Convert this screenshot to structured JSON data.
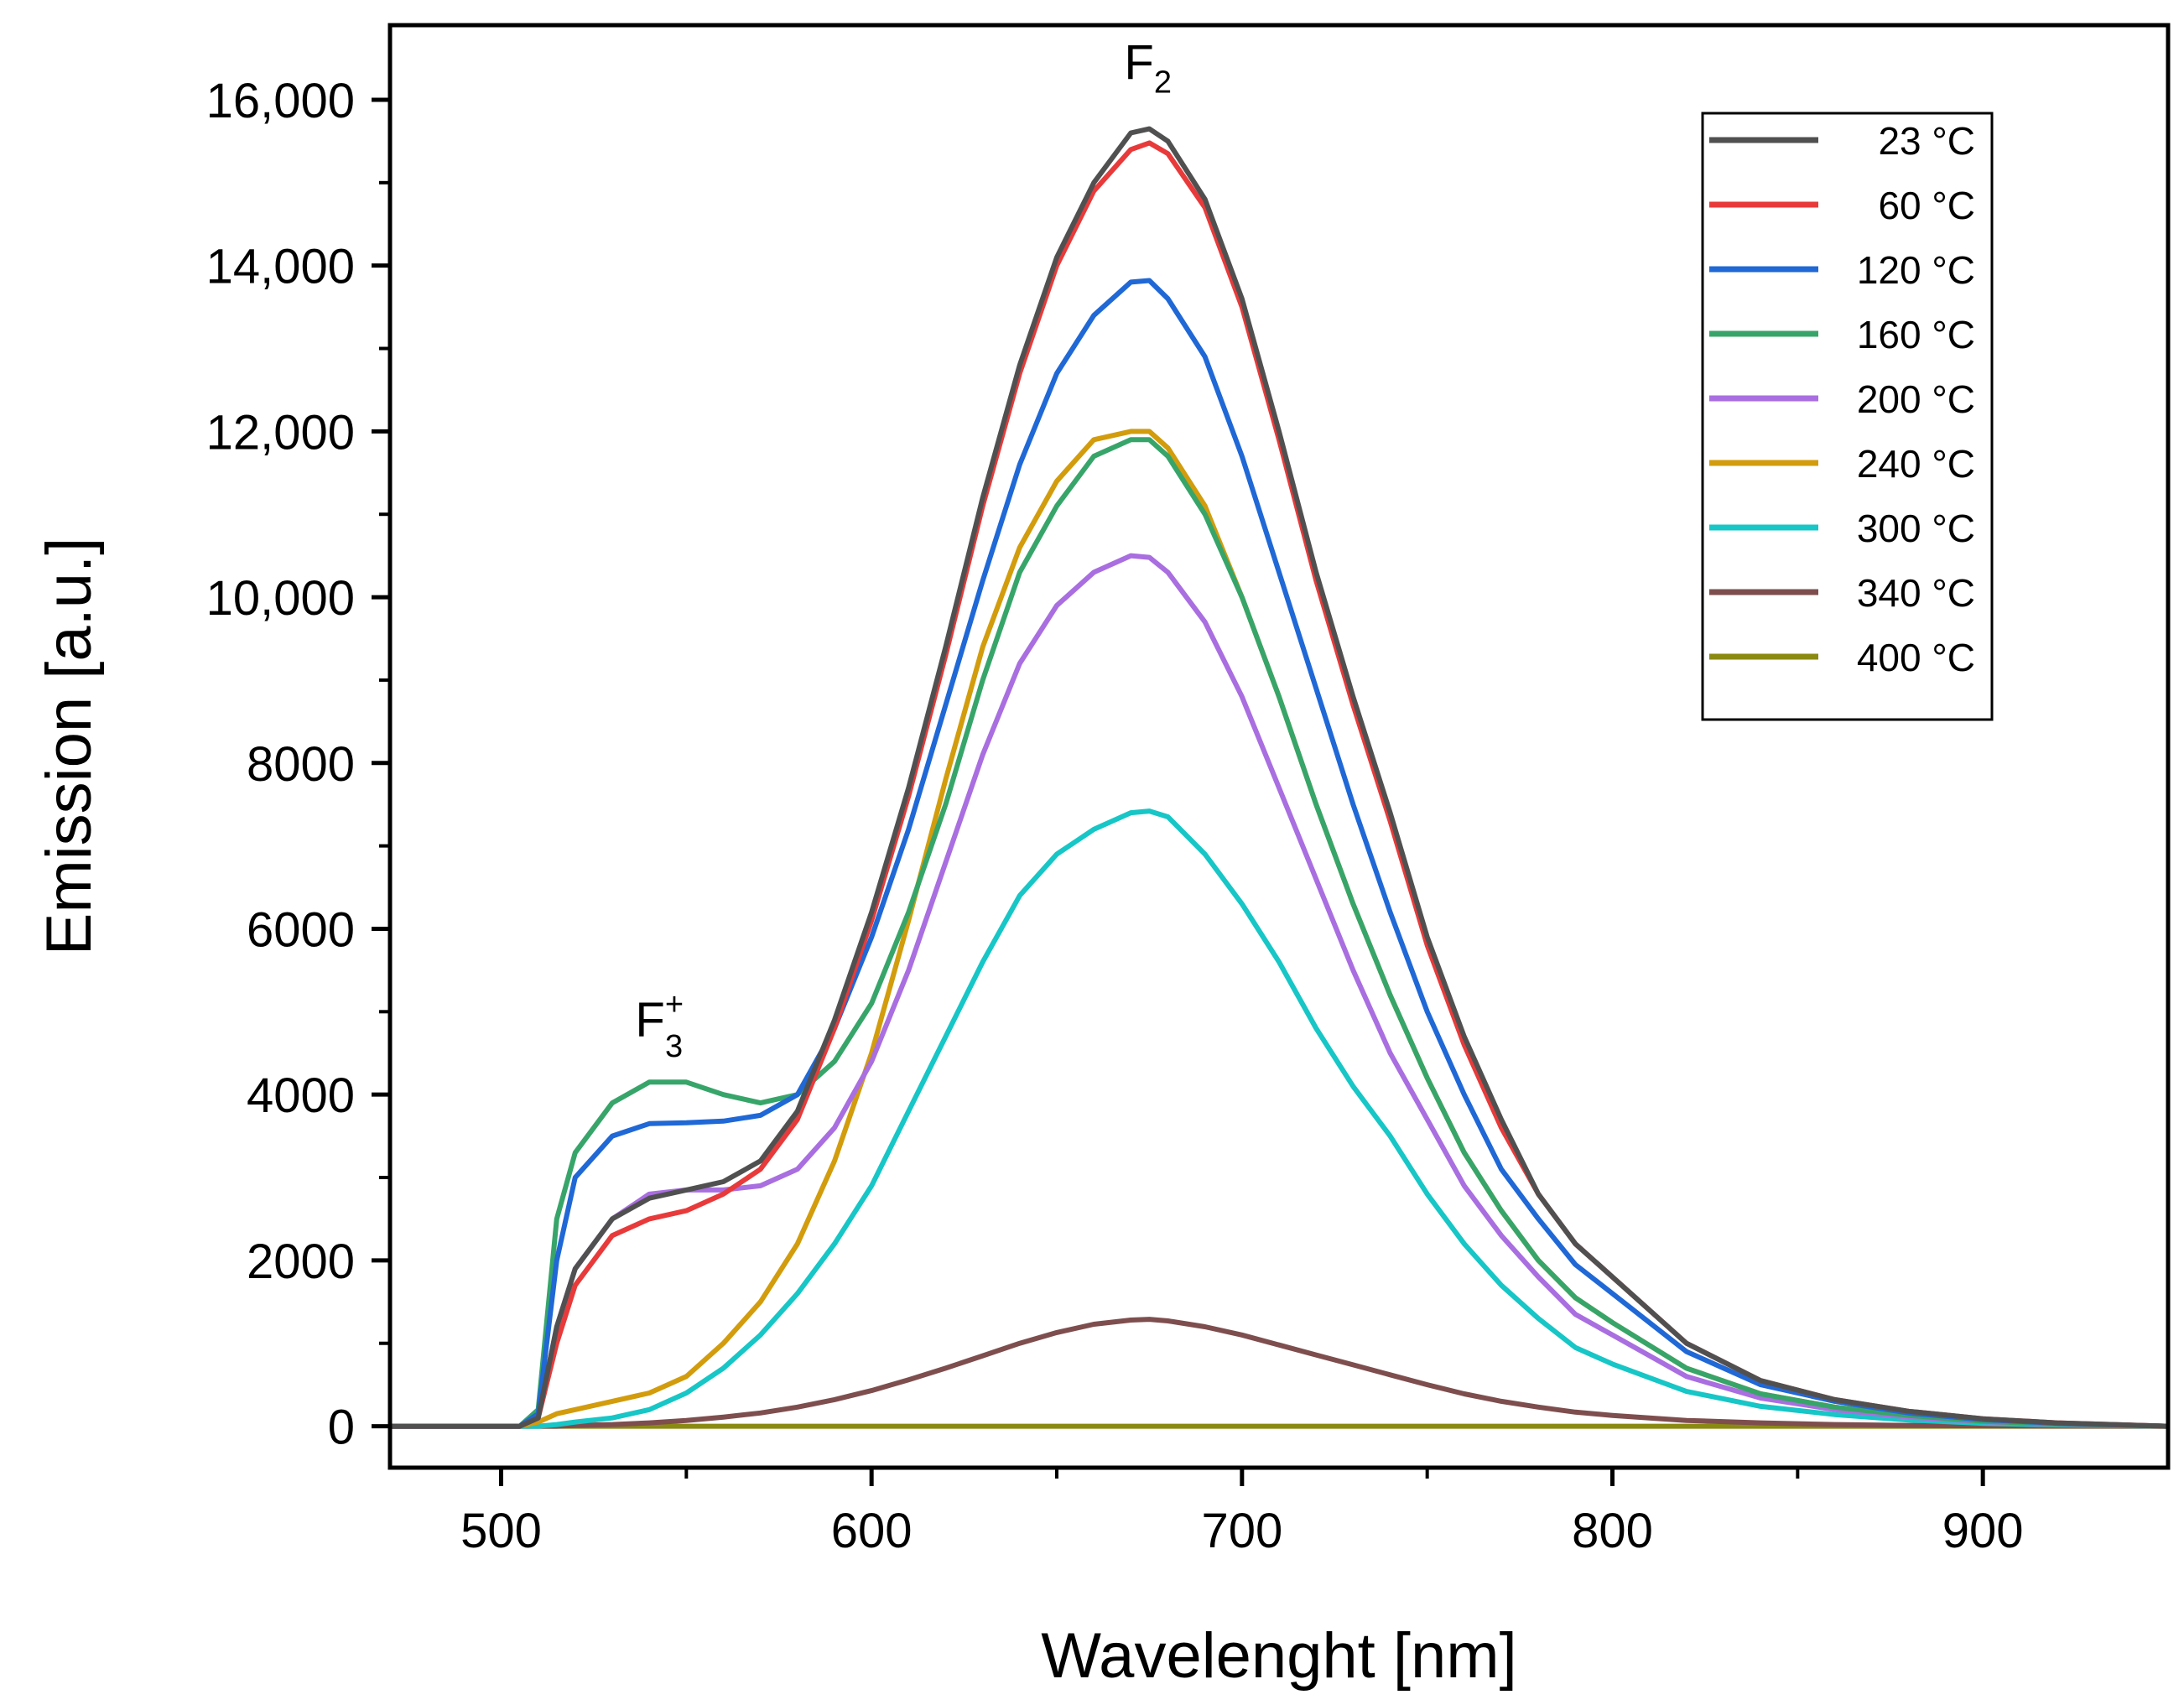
{
  "chart_data": {
    "type": "line",
    "title": "",
    "xlabel": "Wavelenght [nm]",
    "ylabel": "Emission [a.u.]",
    "xlim": [
      470,
      950
    ],
    "ylim": [
      -500,
      16900
    ],
    "xticks": [
      500,
      600,
      700,
      800,
      900
    ],
    "xtick_labels": [
      "500",
      "600",
      "700",
      "800",
      "900"
    ],
    "yticks": [
      0,
      2000,
      4000,
      6000,
      8000,
      10000,
      12000,
      14000,
      16000
    ],
    "ytick_labels": [
      "0",
      "2000",
      "4000",
      "6000",
      "8000",
      "10,000",
      "12,000",
      "14,000",
      "16,000"
    ],
    "legend_position": "top-right",
    "annotations": [
      {
        "text": "F",
        "subscript": "2",
        "superscript": "",
        "x": 675,
        "y": 16250
      },
      {
        "text": "F",
        "subscript": "3",
        "superscript": "+",
        "x": 543,
        "y": 4700
      }
    ],
    "x": [
      470,
      505,
      510,
      515,
      520,
      530,
      540,
      550,
      560,
      570,
      580,
      590,
      600,
      610,
      620,
      630,
      640,
      650,
      660,
      670,
      675,
      680,
      690,
      700,
      710,
      720,
      730,
      740,
      750,
      760,
      770,
      780,
      790,
      800,
      820,
      840,
      860,
      880,
      900,
      920,
      950
    ],
    "series": [
      {
        "name": "23 °C",
        "color": "#505050",
        "values": [
          0,
          0,
          100,
          1200,
          1900,
          2500,
          2750,
          2850,
          2950,
          3200,
          3800,
          4900,
          6200,
          7700,
          9400,
          11200,
          12800,
          14100,
          15000,
          15600,
          15650,
          15500,
          14800,
          13600,
          12000,
          10300,
          8800,
          7400,
          5900,
          4700,
          3700,
          2800,
          2200,
          1800,
          1000,
          550,
          320,
          180,
          90,
          40,
          0
        ]
      },
      {
        "name": "60 °C",
        "color": "#e83a3a",
        "values": [
          0,
          0,
          100,
          1000,
          1700,
          2300,
          2500,
          2600,
          2800,
          3100,
          3700,
          4800,
          6100,
          7600,
          9300,
          11100,
          12700,
          14000,
          14900,
          15400,
          15480,
          15350,
          14700,
          13500,
          11900,
          10200,
          8700,
          7300,
          5800,
          4600,
          3600,
          2800,
          2200,
          1800,
          1000,
          550,
          320,
          180,
          90,
          40,
          0
        ]
      },
      {
        "name": "120 °C",
        "color": "#1f68d6",
        "values": [
          0,
          0,
          150,
          2000,
          3000,
          3500,
          3650,
          3660,
          3680,
          3750,
          4000,
          4800,
          5900,
          7200,
          8700,
          10200,
          11600,
          12700,
          13400,
          13800,
          13820,
          13600,
          12900,
          11700,
          10300,
          8900,
          7500,
          6200,
          5000,
          4000,
          3100,
          2500,
          1950,
          1600,
          900,
          500,
          300,
          160,
          80,
          35,
          0
        ]
      },
      {
        "name": "160 °C",
        "color": "#37a569",
        "values": [
          0,
          0,
          200,
          2500,
          3300,
          3900,
          4150,
          4150,
          4000,
          3900,
          4000,
          4400,
          5100,
          6200,
          7500,
          9000,
          10300,
          11100,
          11700,
          11900,
          11900,
          11700,
          11000,
          10000,
          8800,
          7500,
          6300,
          5200,
          4200,
          3300,
          2600,
          2000,
          1550,
          1250,
          700,
          390,
          230,
          130,
          60,
          25,
          0
        ]
      },
      {
        "name": "200 °C",
        "color": "#a96ee0",
        "values": [
          0,
          0,
          100,
          1200,
          1900,
          2500,
          2800,
          2850,
          2850,
          2900,
          3100,
          3600,
          4400,
          5500,
          6800,
          8100,
          9200,
          9900,
          10300,
          10500,
          10480,
          10300,
          9700,
          8800,
          7700,
          6600,
          5500,
          4500,
          3700,
          2900,
          2300,
          1800,
          1350,
          1100,
          600,
          340,
          200,
          110,
          55,
          20,
          0
        ]
      },
      {
        "name": "240 °C",
        "color": "#d29c0c",
        "values": [
          0,
          0,
          50,
          150,
          200,
          300,
          400,
          600,
          1000,
          1500,
          2200,
          3200,
          4500,
          6100,
          7800,
          9400,
          10600,
          11400,
          11900,
          12000,
          12000,
          11800,
          11100,
          10000,
          8800,
          7500,
          6300,
          5200,
          4200,
          3300,
          2600,
          2000,
          1550,
          1250,
          700,
          390,
          230,
          130,
          60,
          25,
          0
        ]
      },
      {
        "name": "300 °C",
        "color": "#17c6c6",
        "values": [
          0,
          0,
          0,
          20,
          50,
          100,
          200,
          400,
          700,
          1100,
          1600,
          2200,
          2900,
          3800,
          4700,
          5600,
          6400,
          6900,
          7200,
          7400,
          7420,
          7350,
          6900,
          6300,
          5600,
          4800,
          4100,
          3500,
          2800,
          2200,
          1700,
          1300,
          950,
          750,
          420,
          240,
          140,
          75,
          35,
          15,
          0
        ]
      },
      {
        "name": "340 °C",
        "color": "#7e4e4e",
        "values": [
          0,
          0,
          0,
          0,
          10,
          20,
          40,
          70,
          110,
          160,
          230,
          320,
          430,
          560,
          700,
          850,
          1000,
          1130,
          1230,
          1280,
          1290,
          1270,
          1200,
          1100,
          980,
          860,
          740,
          620,
          500,
          390,
          300,
          230,
          170,
          130,
          70,
          40,
          20,
          10,
          5,
          2,
          0
        ]
      },
      {
        "name": "400 °C",
        "color": "#8a8a12",
        "values": [
          0,
          0,
          0,
          0,
          0,
          0,
          0,
          0,
          0,
          0,
          0,
          0,
          0,
          0,
          0,
          0,
          0,
          0,
          0,
          0,
          0,
          0,
          0,
          0,
          0,
          0,
          0,
          0,
          0,
          0,
          0,
          0,
          0,
          0,
          0,
          0,
          0,
          0,
          0,
          0,
          0
        ]
      }
    ]
  }
}
